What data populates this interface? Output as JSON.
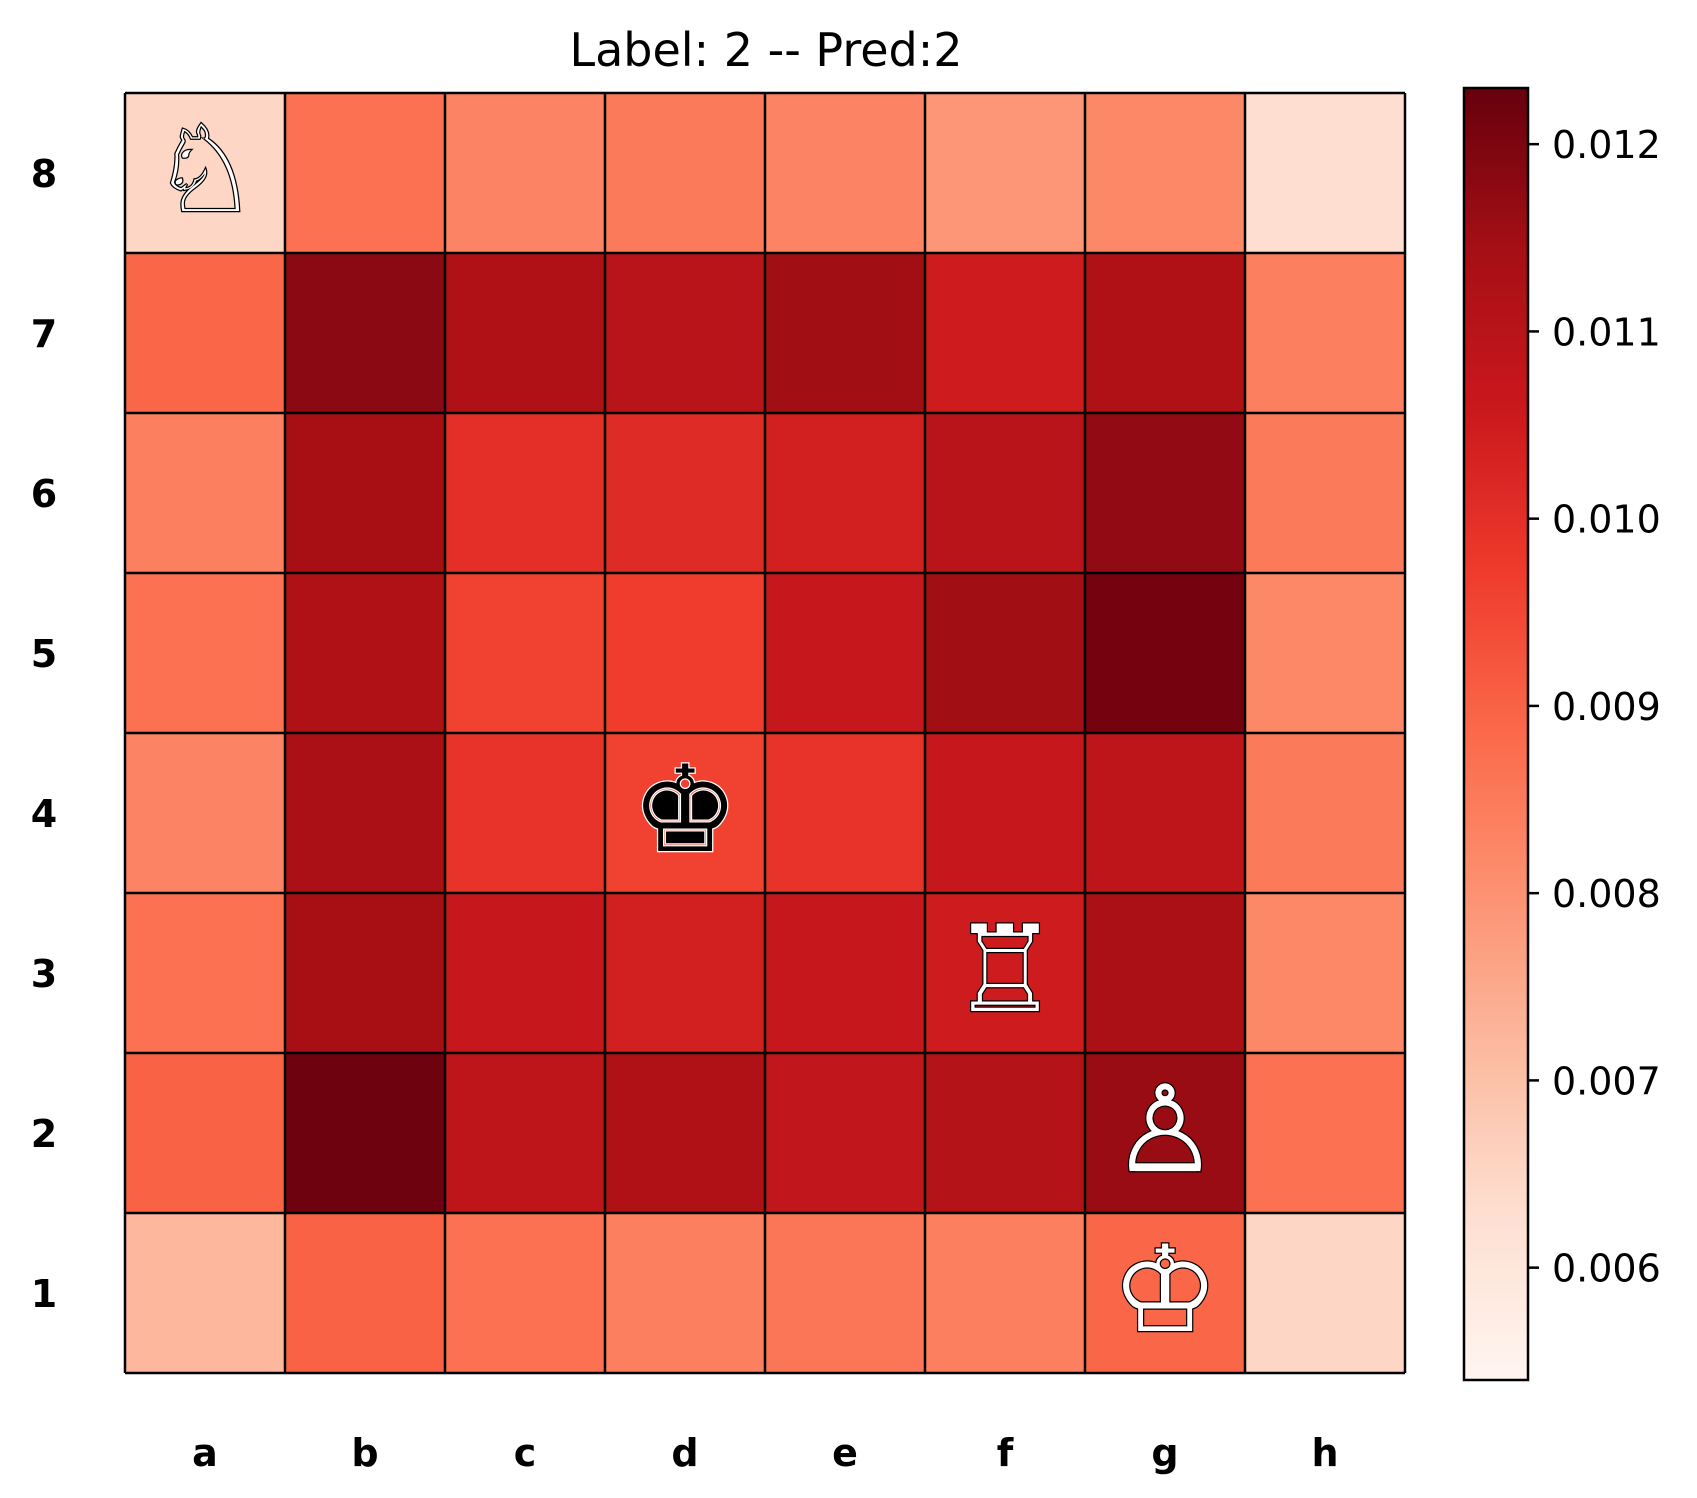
{
  "chart_data": {
    "type": "heatmap",
    "title": "Label: 2 -- Pred:2",
    "files": [
      "a",
      "b",
      "c",
      "d",
      "e",
      "f",
      "g",
      "h"
    ],
    "ranks": [
      "8",
      "7",
      "6",
      "5",
      "4",
      "3",
      "2",
      "1"
    ],
    "values": [
      [
        0.0065,
        0.0087,
        0.0083,
        0.0085,
        0.0083,
        0.0079,
        0.0082,
        0.0063
      ],
      [
        0.0089,
        0.0118,
        0.0112,
        0.011,
        0.0115,
        0.0105,
        0.0112,
        0.0084
      ],
      [
        0.0084,
        0.0114,
        0.01,
        0.0101,
        0.0104,
        0.011,
        0.0117,
        0.0085
      ],
      [
        0.0087,
        0.0112,
        0.0096,
        0.0097,
        0.0107,
        0.0115,
        0.0121,
        0.0082
      ],
      [
        0.0083,
        0.0113,
        0.0099,
        0.0096,
        0.0099,
        0.0107,
        0.0109,
        0.0085
      ],
      [
        0.0087,
        0.0114,
        0.0107,
        0.0104,
        0.0107,
        0.0105,
        0.0113,
        0.0082
      ],
      [
        0.009,
        0.0122,
        0.0109,
        0.0112,
        0.0108,
        0.0111,
        0.0116,
        0.0087
      ],
      [
        0.0072,
        0.009,
        0.0087,
        0.0084,
        0.0086,
        0.0084,
        0.0089,
        0.0065
      ]
    ],
    "vmin": 0.0054,
    "vmax": 0.0123,
    "colormap": "Reds",
    "colorbar": {
      "ticks": [
        0.006,
        0.007,
        0.008,
        0.009,
        0.01,
        0.011,
        0.012
      ],
      "tick_labels": [
        "0.006",
        "0.007",
        "0.008",
        "0.009",
        "0.010",
        "0.011",
        "0.012"
      ],
      "position": "right"
    },
    "pieces": [
      {
        "square": "a8",
        "glyph": "♘",
        "name": "white-knight"
      },
      {
        "square": "d4",
        "glyph": "♚",
        "name": "black-king"
      },
      {
        "square": "f3",
        "glyph": "♖",
        "name": "white-rook"
      },
      {
        "square": "g2",
        "glyph": "♙",
        "name": "white-pawn"
      },
      {
        "square": "g1",
        "glyph": "♔",
        "name": "white-king"
      }
    ],
    "grid": true
  }
}
